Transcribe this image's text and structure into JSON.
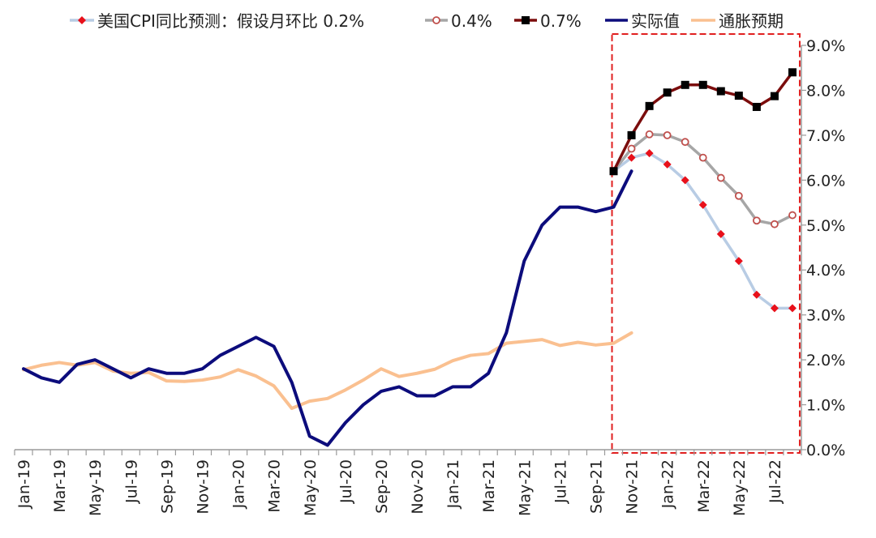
{
  "chart_data": {
    "type": "line",
    "title": "",
    "xlabel": "",
    "ylabel": "",
    "ylim": [
      0,
      9
    ],
    "y_ticks": [
      "0.0%",
      "1.0%",
      "2.0%",
      "3.0%",
      "4.0%",
      "5.0%",
      "6.0%",
      "7.0%",
      "8.0%",
      "9.0%"
    ],
    "y_axis_side": "right",
    "legend_position": "top",
    "x_categories": [
      "Jan-19",
      "Feb-19",
      "Mar-19",
      "Apr-19",
      "May-19",
      "Jun-19",
      "Jul-19",
      "Aug-19",
      "Sep-19",
      "Oct-19",
      "Nov-19",
      "Dec-19",
      "Jan-20",
      "Feb-20",
      "Mar-20",
      "Apr-20",
      "May-20",
      "Jun-20",
      "Jul-20",
      "Aug-20",
      "Sep-20",
      "Oct-20",
      "Nov-20",
      "Dec-20",
      "Jan-21",
      "Feb-21",
      "Mar-21",
      "Apr-21",
      "May-21",
      "Jun-21",
      "Jul-21",
      "Aug-21",
      "Sep-21",
      "Oct-21",
      "Nov-21",
      "Dec-21",
      "Jan-22",
      "Feb-22",
      "Mar-22",
      "Apr-22",
      "May-22",
      "Jun-22",
      "Jul-22",
      "Aug-22"
    ],
    "x_tick_labels": [
      "Jan-19",
      "Mar-19",
      "May-19",
      "Jul-19",
      "Sep-19",
      "Nov-19",
      "Jan-20",
      "Mar-20",
      "May-20",
      "Jul-20",
      "Sep-20",
      "Nov-20",
      "Jan-21",
      "Mar-21",
      "May-21",
      "Jul-21",
      "Sep-21",
      "Nov-21",
      "Jan-22",
      "Mar-22",
      "May-22",
      "Jul-22"
    ],
    "highlight_box": {
      "from": "Oct-21",
      "to": "Aug-22",
      "color": "#e02020",
      "style": "dashed"
    },
    "series": [
      {
        "name": "美国CPI同比预测：假设月环比 0.2%",
        "color": "#b8cce4",
        "marker": "diamond",
        "marker_color": "#e8101a",
        "start": "Oct-21",
        "values": [
          6.2,
          6.5,
          6.6,
          6.35,
          6.0,
          5.45,
          4.8,
          4.2,
          3.45,
          3.15,
          3.15
        ]
      },
      {
        "name": "0.4%",
        "color": "#a6a6a6",
        "marker": "circle",
        "marker_color": "#c0504d",
        "start": "Oct-21",
        "values": [
          6.2,
          6.7,
          7.02,
          7.0,
          6.85,
          6.5,
          6.05,
          5.65,
          5.1,
          5.02,
          5.22
        ]
      },
      {
        "name": "0.7%",
        "color": "#7b0c0c",
        "marker": "square",
        "marker_color": "#000000",
        "start": "Oct-21",
        "values": [
          6.2,
          7.0,
          7.65,
          7.95,
          8.12,
          8.12,
          7.98,
          7.88,
          7.63,
          7.87,
          8.4
        ]
      },
      {
        "name": "实际值",
        "color": "#0c0c7c",
        "marker": "none",
        "start": "Jan-19",
        "values": [
          1.8,
          1.6,
          1.5,
          1.9,
          2.0,
          1.8,
          1.6,
          1.8,
          1.7,
          1.7,
          1.8,
          2.1,
          2.3,
          2.5,
          2.3,
          1.5,
          0.3,
          0.1,
          0.6,
          1.0,
          1.3,
          1.4,
          1.2,
          1.2,
          1.4,
          1.4,
          1.7,
          2.6,
          4.2,
          5.0,
          5.4,
          5.4,
          5.3,
          5.4,
          6.2
        ]
      },
      {
        "name": "通胀预期",
        "color": "#fac090",
        "marker": "none",
        "start": "Jan-19",
        "values": [
          1.78,
          1.88,
          1.94,
          1.88,
          1.94,
          1.75,
          1.7,
          1.72,
          1.53,
          1.52,
          1.55,
          1.62,
          1.78,
          1.64,
          1.42,
          0.92,
          1.08,
          1.14,
          1.33,
          1.55,
          1.8,
          1.63,
          1.7,
          1.79,
          1.98,
          2.1,
          2.14,
          2.37,
          2.41,
          2.45,
          2.32,
          2.39,
          2.33,
          2.37,
          2.6
        ]
      }
    ]
  }
}
